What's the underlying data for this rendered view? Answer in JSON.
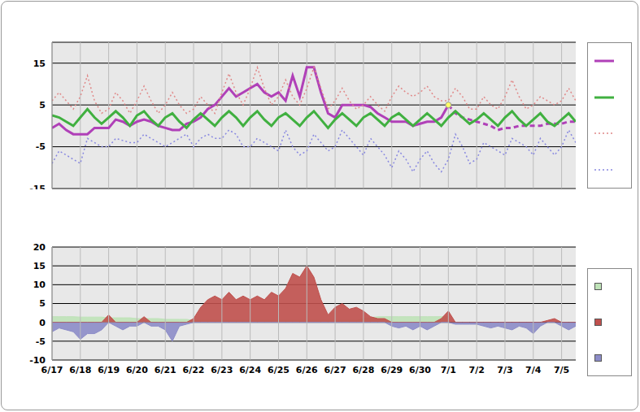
{
  "chart_data": [
    {
      "type": "line",
      "tick_labels": "y",
      "grid": true,
      "x": [
        0,
        0.25,
        0.5,
        0.75,
        1,
        1.25,
        1.5,
        1.75,
        2,
        2.25,
        2.5,
        2.75,
        3,
        3.25,
        3.5,
        3.75,
        4,
        4.25,
        4.5,
        4.75,
        5,
        5.25,
        5.5,
        5.75,
        6,
        6.25,
        6.5,
        6.75,
        7,
        7.25,
        7.5,
        7.75,
        8,
        8.25,
        8.5,
        8.75,
        9,
        9.25,
        9.5,
        9.75,
        10,
        10.25,
        10.5,
        10.75,
        11,
        11.25,
        11.5,
        11.75,
        12,
        12.25,
        12.5,
        12.75,
        13,
        13.25,
        13.5,
        13.75,
        14,
        14.25,
        14.5,
        14.75,
        15,
        15.25,
        15.5,
        15.75,
        16,
        16.25,
        16.5,
        16.75,
        17,
        17.25,
        17.5,
        17.75,
        18,
        18.25,
        18.5
      ],
      "xlim": [
        0,
        18.5
      ],
      "xticks": [
        {
          "value": 0,
          "label": "6/17"
        },
        {
          "value": 1,
          "label": "6/18"
        },
        {
          "value": 2,
          "label": "6/19"
        },
        {
          "value": 3,
          "label": "6/20"
        },
        {
          "value": 4,
          "label": "6/21"
        },
        {
          "value": 5,
          "label": "6/22"
        },
        {
          "value": 6,
          "label": "6/23"
        },
        {
          "value": 7,
          "label": "6/24"
        },
        {
          "value": 8,
          "label": "6/25"
        },
        {
          "value": 9,
          "label": "6/26"
        },
        {
          "value": 10,
          "label": "6/27"
        },
        {
          "value": 11,
          "label": "6/28"
        },
        {
          "value": 12,
          "label": "6/29"
        },
        {
          "value": 13,
          "label": "6/30"
        },
        {
          "value": 14,
          "label": "7/1"
        },
        {
          "value": 15,
          "label": "7/2"
        },
        {
          "value": 16,
          "label": "7/3"
        },
        {
          "value": 17,
          "label": "7/4"
        },
        {
          "value": 18,
          "label": "7/5"
        }
      ],
      "ylim": [
        -15,
        20
      ],
      "yticks": [
        -15,
        -5,
        5,
        15
      ],
      "series": [
        {
          "color": "#b040b8",
          "line_style": "solid",
          "values": [
            -0.5,
            0.5,
            -1,
            -2,
            -2,
            -2,
            -0.5,
            -0.5,
            -0.5,
            1.5,
            1,
            0,
            1,
            1.5,
            1,
            0,
            -0.5,
            -1,
            -1,
            0.5,
            1,
            2,
            4,
            5,
            7,
            9,
            7,
            8,
            9,
            10,
            8,
            7,
            8,
            6,
            12,
            7,
            14,
            14,
            8,
            3,
            2,
            5,
            5,
            5,
            5,
            4.5,
            3,
            2,
            1,
            1,
            1,
            0,
            0.5,
            1,
            1,
            2,
            5,
            null,
            null,
            null,
            null,
            null,
            null,
            null,
            null,
            null,
            null,
            null,
            null,
            null,
            null,
            null,
            null,
            null,
            null
          ]
        },
        {
          "color": "#b040b8",
          "line_style": "dashed",
          "values": [
            null,
            null,
            null,
            null,
            null,
            null,
            null,
            null,
            null,
            null,
            null,
            null,
            null,
            null,
            null,
            null,
            null,
            null,
            null,
            null,
            null,
            null,
            null,
            null,
            null,
            null,
            null,
            null,
            null,
            null,
            null,
            null,
            null,
            null,
            null,
            null,
            null,
            null,
            null,
            null,
            null,
            null,
            null,
            null,
            null,
            null,
            null,
            null,
            null,
            null,
            null,
            null,
            null,
            null,
            null,
            null,
            5,
            3,
            2,
            1.5,
            1,
            0.5,
            0,
            -1,
            -0.5,
            -0.5,
            0,
            0,
            0,
            0,
            0.5,
            0.5,
            0.5,
            1,
            1
          ]
        },
        {
          "color": "#40b040",
          "line_style": "solid",
          "values": [
            2.5,
            2,
            1,
            0,
            2,
            4,
            2,
            0.5,
            2,
            3.5,
            2,
            0,
            2.5,
            3.5,
            1.5,
            0,
            2,
            3,
            1,
            -0.5,
            1.5,
            3,
            1.5,
            0,
            2,
            3.5,
            2,
            0,
            2,
            3.5,
            1.5,
            0,
            2,
            3,
            1.5,
            0,
            2,
            3.5,
            1.5,
            -0.5,
            1.5,
            3,
            1.5,
            0,
            2,
            3,
            1.5,
            0,
            2,
            3,
            1.5,
            0,
            1.5,
            3,
            1.5,
            0,
            2,
            3.5,
            2,
            0.5,
            1.5,
            3,
            1.5,
            0,
            2,
            3.5,
            1.5,
            0,
            1.5,
            3,
            1,
            0,
            1.5,
            3,
            1
          ]
        },
        {
          "color": "#e08888",
          "line_style": "dotted",
          "values": [
            6,
            8,
            6,
            4,
            7,
            12,
            6,
            3,
            4,
            8,
            6,
            3,
            6,
            9.5,
            6,
            3,
            5,
            8,
            5,
            3,
            4,
            7,
            5,
            3,
            8,
            12.5,
            8,
            5,
            9,
            14,
            9,
            5,
            7,
            11,
            7,
            5,
            9,
            14,
            9,
            4,
            6,
            9,
            6,
            4,
            5,
            7,
            5,
            3.5,
            7,
            9.5,
            8,
            7,
            8,
            9.5,
            7,
            6,
            6,
            9,
            7,
            4,
            4,
            7,
            5,
            4,
            7,
            11,
            7,
            4,
            5,
            7,
            6,
            5,
            6,
            9,
            6
          ]
        },
        {
          "color": "#8888e0",
          "line_style": "dotted",
          "values": [
            -9,
            -6,
            -7,
            -8,
            -9,
            -3,
            -4,
            -5,
            -5,
            -3,
            -3.5,
            -4,
            -4,
            -2,
            -3,
            -4,
            -5,
            -4,
            -3,
            -2,
            -5,
            -3,
            -2,
            -3,
            -3,
            -1,
            -2,
            -5,
            -5,
            -3,
            -4,
            -5,
            -6,
            -1,
            -5,
            -7,
            -6,
            -2,
            -4,
            -6,
            -5,
            -1,
            -3,
            -5,
            -7,
            -3,
            -5,
            -7,
            -10,
            -6,
            -8,
            -11,
            -8,
            -6,
            -9,
            -11,
            -8,
            -2,
            -5,
            -9,
            -8,
            -4,
            -5,
            -6,
            -7,
            -3,
            -4,
            -5,
            -7,
            -3,
            -5,
            -7,
            -5,
            -1,
            -4
          ]
        },
        {
          "color": "#ffff66",
          "marker": "circle",
          "values": [
            null,
            null,
            null,
            null,
            null,
            null,
            null,
            null,
            null,
            null,
            null,
            null,
            null,
            null,
            null,
            null,
            null,
            null,
            null,
            null,
            null,
            null,
            null,
            null,
            null,
            null,
            null,
            null,
            null,
            null,
            null,
            null,
            null,
            null,
            null,
            null,
            null,
            null,
            null,
            null,
            null,
            null,
            null,
            null,
            null,
            null,
            null,
            null,
            null,
            null,
            null,
            null,
            null,
            null,
            null,
            null,
            5,
            null,
            null,
            null,
            null,
            null,
            null,
            null,
            null,
            null,
            null,
            null,
            null,
            null,
            null,
            null,
            null,
            null,
            null
          ]
        }
      ]
    },
    {
      "type": "area",
      "grid": true,
      "x": [
        0,
        0.25,
        0.5,
        0.75,
        1,
        1.25,
        1.5,
        1.75,
        2,
        2.25,
        2.5,
        2.75,
        3,
        3.25,
        3.5,
        3.75,
        4,
        4.25,
        4.5,
        4.75,
        5,
        5.25,
        5.5,
        5.75,
        6,
        6.25,
        6.5,
        6.75,
        7,
        7.25,
        7.5,
        7.75,
        8,
        8.25,
        8.5,
        8.75,
        9,
        9.25,
        9.5,
        9.75,
        10,
        10.25,
        10.5,
        10.75,
        11,
        11.25,
        11.5,
        11.75,
        12,
        12.25,
        12.5,
        12.75,
        13,
        13.25,
        13.5,
        13.75,
        14,
        14.25,
        14.5,
        14.75,
        15,
        15.25,
        15.5,
        15.75,
        16,
        16.25,
        16.5,
        16.75,
        17,
        17.25,
        17.5,
        17.75,
        18,
        18.25,
        18.5
      ],
      "xlim": [
        0,
        18.5
      ],
      "xticks": [
        {
          "value": 0,
          "label": "6/17"
        },
        {
          "value": 1,
          "label": "6/18"
        },
        {
          "value": 2,
          "label": "6/19"
        },
        {
          "value": 3,
          "label": "6/20"
        },
        {
          "value": 4,
          "label": "6/21"
        },
        {
          "value": 5,
          "label": "6/22"
        },
        {
          "value": 6,
          "label": "6/23"
        },
        {
          "value": 7,
          "label": "6/24"
        },
        {
          "value": 8,
          "label": "6/25"
        },
        {
          "value": 9,
          "label": "6/26"
        },
        {
          "value": 10,
          "label": "6/27"
        },
        {
          "value": 11,
          "label": "6/28"
        },
        {
          "value": 12,
          "label": "6/29"
        },
        {
          "value": 13,
          "label": "6/30"
        },
        {
          "value": 14,
          "label": "7/1"
        },
        {
          "value": 15,
          "label": "7/2"
        },
        {
          "value": 16,
          "label": "7/3"
        },
        {
          "value": 17,
          "label": "7/4"
        },
        {
          "value": 18,
          "label": "7/5"
        }
      ],
      "ylim": [
        -10,
        20
      ],
      "yticks": [
        -10,
        -5,
        0,
        5,
        10,
        15,
        20
      ],
      "series": [
        {
          "color": "#bfe3b8",
          "values": [
            1.5,
            1.5,
            1.5,
            1.5,
            1.4,
            1.4,
            1.4,
            1.4,
            1.2,
            1.2,
            1.2,
            1.2,
            1,
            1,
            1,
            1,
            0.8,
            0.8,
            0.8,
            0.8,
            0.5,
            0.5,
            0.5,
            0.5,
            0.5,
            0.5,
            0.5,
            0.5,
            0.5,
            0.5,
            0.5,
            0.5,
            0.5,
            0.5,
            0.5,
            0.5,
            0.5,
            0.5,
            0.5,
            0.5,
            0.5,
            0.5,
            0.5,
            0.5,
            1,
            1.2,
            1.5,
            1.5,
            1.5,
            1.5,
            1.5,
            1.5,
            1.5,
            1.5,
            1.5,
            1.5,
            1.5,
            null,
            null,
            null,
            null,
            null,
            null,
            null,
            null,
            null,
            null,
            null,
            null,
            null,
            null,
            null,
            null,
            null,
            null
          ]
        },
        {
          "color": "#c0504d",
          "values": [
            0,
            0,
            0,
            0,
            0,
            0,
            0,
            0,
            2,
            0,
            0,
            0,
            0,
            1.5,
            0,
            0,
            0,
            0,
            0,
            0,
            1,
            4,
            6,
            7,
            6,
            8,
            6,
            7,
            6,
            7,
            6,
            8,
            7,
            9,
            13,
            12,
            15,
            12,
            6,
            2,
            4,
            5,
            3.5,
            4,
            3,
            1.5,
            1,
            1,
            0,
            0,
            0,
            0,
            0,
            0,
            0,
            1,
            3,
            0,
            0,
            0,
            0,
            0,
            0,
            0,
            0,
            0,
            0,
            0,
            0,
            0,
            0.5,
            1,
            0,
            0,
            0
          ]
        },
        {
          "color": "#8c8cc8",
          "values": [
            -2.5,
            -1.5,
            -2,
            -2.5,
            -4.5,
            -3,
            -3,
            -2,
            0,
            -1,
            -2,
            -1,
            -1,
            0,
            -1,
            -1,
            -2,
            -5,
            -1,
            -0.5,
            0,
            0,
            0,
            0,
            0,
            0,
            0,
            0,
            0,
            0,
            0,
            0,
            0,
            0,
            0,
            0,
            0,
            0,
            0,
            0,
            0,
            0,
            0,
            0,
            0,
            0,
            0,
            0,
            -1,
            -1.5,
            -1,
            -2,
            -1,
            -2,
            -1,
            0,
            0,
            -0.5,
            -0.5,
            -0.5,
            -0.5,
            -1,
            -1.5,
            -1,
            -1.5,
            -2,
            -1,
            -1.5,
            -3,
            -1,
            0,
            0,
            -1,
            -2,
            -1
          ]
        }
      ]
    }
  ]
}
